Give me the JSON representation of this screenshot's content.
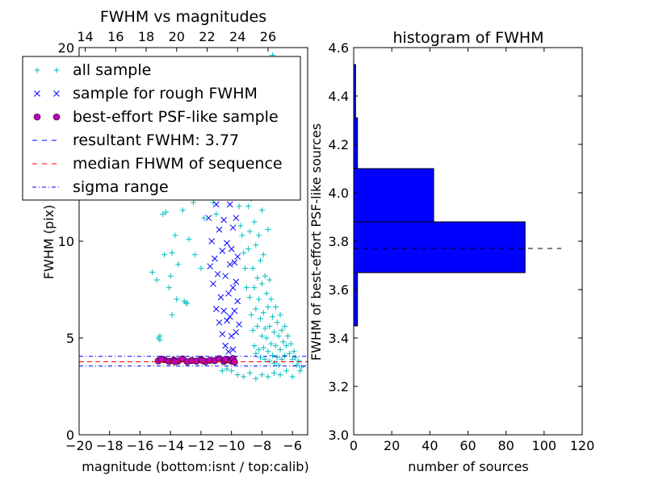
{
  "chart_data": [
    {
      "type": "scatter",
      "title": "FWHM vs magnitudes",
      "xlabel": "magnitude (bottom:isnt / top:calib)",
      "ylabel": "FWHM (pix)",
      "xlim": [
        -20,
        -5
      ],
      "ylim": [
        0,
        20
      ],
      "x_ticks": [
        -20,
        -18,
        -16,
        -14,
        -12,
        -10,
        -8,
        -6
      ],
      "x_tick_labels": [
        "−20",
        "−18",
        "−16",
        "−14",
        "−12",
        "−10",
        "−8",
        "−6"
      ],
      "y_ticks": [
        0,
        5,
        10,
        15,
        20
      ],
      "y_tick_labels": [
        "0",
        "5",
        "10",
        "",
        "20"
      ],
      "top_axis_ticks": [
        14,
        16,
        18,
        20,
        22,
        24,
        26
      ],
      "top_axis_label_values": [
        14,
        16,
        18,
        20,
        22,
        24,
        26
      ],
      "top_axis_offset": 33.6,
      "grid": false,
      "legend_position": "upper-left",
      "legend": [
        {
          "label": "all sample",
          "marker": "plus",
          "color": "#00bfbf"
        },
        {
          "label": "sample for rough FWHM",
          "marker": "x",
          "color": "#0000ff"
        },
        {
          "label": "best-effort PSF-like sample",
          "marker": "circle",
          "color": "#bf00bf"
        },
        {
          "label": "resultant FWHM: 3.77",
          "marker": "dashed-line",
          "color": "#0000ff"
        },
        {
          "label": "median FHWM of sequence",
          "marker": "dashed-line",
          "color": "#ff0000"
        },
        {
          "label": "sigma range",
          "marker": "dashdot-line",
          "color": "#0000ff"
        }
      ],
      "series": [
        {
          "name": "all sample",
          "marker": "plus",
          "color": "#00bfbf",
          "points": [
            [
              -15.2,
              8.4
            ],
            [
              -14.9,
              8.0
            ],
            [
              -14.8,
              5.0
            ],
            [
              -14.7,
              5.1
            ],
            [
              -14.7,
              4.9
            ],
            [
              -14.5,
              11.4
            ],
            [
              -14.4,
              9.3
            ],
            [
              -14.3,
              11.5
            ],
            [
              -14.1,
              7.6
            ],
            [
              -14.0,
              8.2
            ],
            [
              -13.9,
              9.4
            ],
            [
              -13.9,
              6.2
            ],
            [
              -13.7,
              10.3
            ],
            [
              -13.6,
              7.0
            ],
            [
              -13.5,
              8.8
            ],
            [
              -13.2,
              11.6
            ],
            [
              -13.1,
              6.9
            ],
            [
              -13.0,
              6.8
            ],
            [
              -12.9,
              6.8
            ],
            [
              -12.8,
              10.1
            ],
            [
              -12.5,
              12.0
            ],
            [
              -12.4,
              9.3
            ],
            [
              -12.3,
              13.4
            ],
            [
              -12.0,
              8.6
            ],
            [
              -11.8,
              11.2
            ],
            [
              -11.5,
              13.2
            ],
            [
              -11.3,
              12.6
            ],
            [
              -11.2,
              12.0
            ],
            [
              -11.0,
              11.4
            ],
            [
              -10.5,
              12.9
            ],
            [
              -10.3,
              13.5
            ],
            [
              -10.1,
              13.2
            ],
            [
              -10.6,
              3.3
            ],
            [
              -10.3,
              3.4
            ],
            [
              -10.0,
              3.3
            ],
            [
              -9.6,
              12.9
            ],
            [
              -9.5,
              11.8
            ],
            [
              -9.4,
              10.8
            ],
            [
              -9.3,
              10.3
            ],
            [
              -9.2,
              9.4
            ],
            [
              -9.1,
              13.2
            ],
            [
              -9.1,
              8.6
            ],
            [
              -9.0,
              12.4
            ],
            [
              -9.0,
              7.6
            ],
            [
              -8.9,
              11.8
            ],
            [
              -8.9,
              9.6
            ],
            [
              -8.8,
              10.5
            ],
            [
              -8.8,
              7.1
            ],
            [
              -8.7,
              6.2
            ],
            [
              -8.7,
              12.2
            ],
            [
              -8.6,
              8.6
            ],
            [
              -8.6,
              5.4
            ],
            [
              -8.5,
              11.0
            ],
            [
              -8.5,
              7.6
            ],
            [
              -8.5,
              4.6
            ],
            [
              -8.4,
              9.8
            ],
            [
              -8.4,
              6.5
            ],
            [
              -8.4,
              4.2
            ],
            [
              -8.3,
              12.8
            ],
            [
              -8.3,
              8.1
            ],
            [
              -8.3,
              5.6
            ],
            [
              -8.2,
              10.3
            ],
            [
              -8.2,
              7.0
            ],
            [
              -8.2,
              4.4
            ],
            [
              -8.1,
              9.0
            ],
            [
              -8.1,
              6.0
            ],
            [
              -8.1,
              4.0
            ],
            [
              -8.0,
              11.6
            ],
            [
              -8.0,
              7.8
            ],
            [
              -8.0,
              5.1
            ],
            [
              -7.9,
              9.3
            ],
            [
              -7.9,
              6.3
            ],
            [
              -7.9,
              4.5
            ],
            [
              -7.8,
              8.2
            ],
            [
              -7.8,
              5.5
            ],
            [
              -7.8,
              3.9
            ],
            [
              -7.7,
              7.3
            ],
            [
              -7.7,
              5.0
            ],
            [
              -7.6,
              10.6
            ],
            [
              -7.6,
              6.6
            ],
            [
              -7.6,
              4.3
            ],
            [
              -7.5,
              8.0
            ],
            [
              -7.5,
              5.6
            ],
            [
              -7.5,
              3.8
            ],
            [
              -7.4,
              7.0
            ],
            [
              -7.4,
              4.7
            ],
            [
              -7.3,
              19.6
            ],
            [
              -7.3,
              6.1
            ],
            [
              -7.3,
              4.1
            ],
            [
              -7.2,
              5.3
            ],
            [
              -7.2,
              3.7
            ],
            [
              -7.1,
              6.6
            ],
            [
              -7.1,
              4.6
            ],
            [
              -7.0,
              5.8
            ],
            [
              -7.0,
              4.0
            ],
            [
              -6.9,
              5.1
            ],
            [
              -6.9,
              3.6
            ],
            [
              -6.8,
              6.2
            ],
            [
              -6.8,
              4.4
            ],
            [
              -6.7,
              5.4
            ],
            [
              -6.7,
              3.9
            ],
            [
              -6.6,
              4.8
            ],
            [
              -6.5,
              5.6
            ],
            [
              -6.5,
              4.1
            ],
            [
              -6.4,
              4.6
            ],
            [
              -6.3,
              5.1
            ],
            [
              -6.2,
              4.2
            ],
            [
              -6.1,
              4.7
            ],
            [
              -6.0,
              3.9
            ],
            [
              -5.9,
              4.3
            ],
            [
              -5.8,
              4.0
            ],
            [
              -5.7,
              3.6
            ],
            [
              -5.6,
              3.8
            ],
            [
              -5.5,
              3.3
            ],
            [
              -5.4,
              3.5
            ],
            [
              -9.6,
              3.1
            ],
            [
              -9.2,
              3.0
            ],
            [
              -8.8,
              3.2
            ],
            [
              -8.4,
              2.9
            ],
            [
              -8.0,
              3.1
            ],
            [
              -7.6,
              3.0
            ],
            [
              -7.2,
              3.2
            ],
            [
              -6.8,
              3.1
            ],
            [
              -6.4,
              3.3
            ],
            [
              -6.0,
              3.0
            ]
          ]
        },
        {
          "name": "sample for rough FWHM",
          "marker": "x",
          "color": "#0000ff",
          "points": [
            [
              -11.9,
              14.5
            ],
            [
              -11.6,
              13.3
            ],
            [
              -11.5,
              11.2
            ],
            [
              -11.4,
              8.7
            ],
            [
              -11.3,
              10.0
            ],
            [
              -11.2,
              7.8
            ],
            [
              -11.1,
              9.1
            ],
            [
              -11.0,
              11.9
            ],
            [
              -11.0,
              6.5
            ],
            [
              -10.9,
              8.3
            ],
            [
              -10.8,
              10.6
            ],
            [
              -10.8,
              5.8
            ],
            [
              -10.7,
              7.1
            ],
            [
              -10.7,
              12.5
            ],
            [
              -10.6,
              9.5
            ],
            [
              -10.6,
              5.2
            ],
            [
              -10.5,
              6.4
            ],
            [
              -10.5,
              11.1
            ],
            [
              -10.4,
              8.2
            ],
            [
              -10.4,
              4.6
            ],
            [
              -10.3,
              9.9
            ],
            [
              -10.3,
              5.9
            ],
            [
              -10.2,
              13.2
            ],
            [
              -10.2,
              7.3
            ],
            [
              -10.2,
              4.3
            ],
            [
              -10.1,
              8.8
            ],
            [
              -10.1,
              6.1
            ],
            [
              -10.1,
              11.9
            ],
            [
              -10.0,
              5.1
            ],
            [
              -10.0,
              9.6
            ],
            [
              -10.0,
              14.8
            ],
            [
              -9.9,
              7.6
            ],
            [
              -9.9,
              4.4
            ],
            [
              -9.9,
              10.7
            ],
            [
              -9.8,
              6.4
            ],
            [
              -9.8,
              8.9
            ],
            [
              -9.8,
              12.8
            ],
            [
              -9.7,
              5.3
            ],
            [
              -9.7,
              7.9
            ],
            [
              -9.7,
              11.2
            ],
            [
              -9.6,
              6.9
            ],
            [
              -9.6,
              9.2
            ],
            [
              -9.5,
              5.7
            ],
            [
              -9.5,
              13.6
            ],
            [
              -10.3,
              12.3
            ]
          ]
        },
        {
          "name": "best-effort PSF-like sample",
          "marker": "circle",
          "color": "#bf00bf",
          "points": [
            [
              -14.8,
              3.82
            ],
            [
              -14.4,
              3.88
            ],
            [
              -14.1,
              3.79
            ],
            [
              -13.8,
              3.86
            ],
            [
              -13.5,
              3.81
            ],
            [
              -13.2,
              3.92
            ],
            [
              -12.9,
              3.77
            ],
            [
              -12.6,
              3.84
            ],
            [
              -12.3,
              3.8
            ],
            [
              -12.0,
              3.9
            ],
            [
              -11.7,
              3.78
            ],
            [
              -11.4,
              3.85
            ],
            [
              -11.1,
              3.83
            ],
            [
              -10.8,
              3.93
            ],
            [
              -10.5,
              3.79
            ],
            [
              -10.2,
              3.87
            ],
            [
              -10.0,
              3.81
            ],
            [
              -9.9,
              3.94
            ],
            [
              -9.8,
              3.76
            ],
            [
              -10.4,
              3.89
            ],
            [
              -11.9,
              3.83
            ],
            [
              -13.7,
              3.78
            ],
            [
              -14.6,
              3.91
            ]
          ]
        }
      ],
      "reference_lines": [
        {
          "label": "resultant FWHM: 3.77",
          "y": 3.77,
          "style": "dashed",
          "color": "#0000ff"
        },
        {
          "label": "median FHWM of sequence",
          "y": 3.77,
          "style": "dashed",
          "color": "#ff0000"
        },
        {
          "label": "sigma range",
          "y": 4.05,
          "style": "dashdot",
          "color": "#0000ff"
        },
        {
          "label": "sigma range",
          "y": 3.55,
          "style": "dashdot",
          "color": "#0000ff"
        }
      ]
    },
    {
      "type": "bar",
      "orientation": "horizontal",
      "title": "histogram of FWHM",
      "xlabel": "number of sources",
      "ylabel": "FWHM of best-effort PSF-like sources",
      "xlim": [
        0,
        120
      ],
      "ylim": [
        3.0,
        4.6
      ],
      "x_ticks": [
        0,
        20,
        40,
        60,
        80,
        100,
        120
      ],
      "y_ticks": [
        3.0,
        3.2,
        3.4,
        3.6,
        3.8,
        4.0,
        4.2,
        4.4,
        4.6
      ],
      "bar_color": "#0000ff",
      "bins": [
        {
          "y0": 3.45,
          "y1": 3.67,
          "count": 2
        },
        {
          "y0": 3.67,
          "y1": 3.88,
          "count": 90
        },
        {
          "y0": 3.88,
          "y1": 4.1,
          "count": 42
        },
        {
          "y0": 4.1,
          "y1": 4.31,
          "count": 2
        },
        {
          "y0": 4.31,
          "y1": 4.53,
          "count": 1
        }
      ],
      "reference_line": {
        "y": 3.77,
        "x_end": 109,
        "style": "dashed",
        "color": "#000000"
      }
    }
  ]
}
